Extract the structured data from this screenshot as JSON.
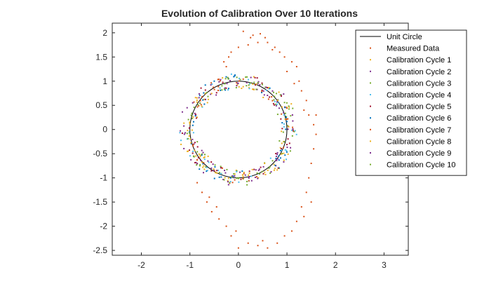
{
  "chart_data": {
    "type": "scatter",
    "title": "Evolution of Calibration Over 10 Iterations",
    "xlabel": "",
    "ylabel": "",
    "xlim": [
      -2.6,
      3.5
    ],
    "ylim": [
      -2.6,
      2.2
    ],
    "x_ticks": [
      -2,
      -1,
      0,
      1,
      2,
      3
    ],
    "y_ticks": [
      -2.5,
      -2,
      -1.5,
      -1,
      -0.5,
      0,
      0.5,
      1,
      1.5,
      2
    ],
    "x_tick_labels": [
      "-2",
      "-1",
      "0",
      "1",
      "2",
      "3"
    ],
    "y_tick_labels": [
      "-2.5",
      "-2",
      "-1.5",
      "-1",
      "-0.5",
      "0",
      "0.5",
      "1",
      "1.5",
      "2"
    ],
    "grid": false,
    "legend_position": "top-right",
    "series": [
      {
        "name": "Unit Circle",
        "kind": "line",
        "color": "#000000"
      },
      {
        "name": "Measured Data",
        "kind": "points",
        "color": "#D95319",
        "points": [
          [
            0.1,
            2.03
          ],
          [
            0.3,
            1.95
          ],
          [
            0.45,
            1.98
          ],
          [
            0.6,
            1.8
          ],
          [
            0.75,
            1.7
          ],
          [
            0.0,
            1.7
          ],
          [
            -0.15,
            1.6
          ],
          [
            0.2,
            1.75
          ],
          [
            0.4,
            1.8
          ],
          [
            0.85,
            1.6
          ],
          [
            0.95,
            1.5
          ],
          [
            1.1,
            1.4
          ],
          [
            1.2,
            1.3
          ],
          [
            1.25,
            1.0
          ],
          [
            1.3,
            0.8
          ],
          [
            1.4,
            0.6
          ],
          [
            1.45,
            0.3
          ],
          [
            1.55,
            0.1
          ],
          [
            1.6,
            -0.1
          ],
          [
            1.55,
            -0.4
          ],
          [
            1.5,
            -0.7
          ],
          [
            1.45,
            -1.0
          ],
          [
            1.4,
            -1.3
          ],
          [
            1.3,
            -1.6
          ],
          [
            1.2,
            -1.9
          ],
          [
            1.1,
            -2.1
          ],
          [
            0.95,
            -2.2
          ],
          [
            0.8,
            -2.35
          ],
          [
            0.6,
            -2.45
          ],
          [
            0.4,
            -2.4
          ],
          [
            0.2,
            -2.35
          ],
          [
            0.0,
            -2.45
          ],
          [
            -0.15,
            -2.2
          ],
          [
            -0.25,
            -2.0
          ],
          [
            -0.4,
            -1.85
          ],
          [
            -0.55,
            -1.7
          ],
          [
            -0.65,
            -1.5
          ],
          [
            -0.75,
            -1.3
          ],
          [
            -0.85,
            -1.1
          ],
          [
            -0.3,
            1.4
          ],
          [
            -0.25,
            1.3
          ],
          [
            -0.2,
            1.5
          ],
          [
            1.0,
            1.2
          ],
          [
            1.15,
            0.95
          ],
          [
            1.35,
            0.4
          ],
          [
            1.6,
            0.3
          ],
          [
            1.5,
            -1.5
          ],
          [
            1.35,
            -1.8
          ],
          [
            0.5,
            -2.3
          ],
          [
            -0.05,
            -2.1
          ],
          [
            -0.45,
            -1.6
          ],
          [
            -0.6,
            -1.4
          ],
          [
            0.7,
            1.65
          ],
          [
            0.55,
            1.9
          ],
          [
            0.25,
            1.9
          ]
        ]
      },
      {
        "name": "Calibration Cycle 1",
        "kind": "points",
        "color": "#EDB120"
      },
      {
        "name": "Calibration Cycle 2",
        "kind": "points",
        "color": "#7E2F8E"
      },
      {
        "name": "Calibration Cycle 3",
        "kind": "points",
        "color": "#77AC30"
      },
      {
        "name": "Calibration Cycle 4",
        "kind": "points",
        "color": "#4DBEEE"
      },
      {
        "name": "Calibration Cycle 5",
        "kind": "points",
        "color": "#A2142F"
      },
      {
        "name": "Calibration Cycle 6",
        "kind": "points",
        "color": "#0072BD"
      },
      {
        "name": "Calibration Cycle 7",
        "kind": "points",
        "color": "#D95319"
      },
      {
        "name": "Calibration Cycle 8",
        "kind": "points",
        "color": "#EDB120"
      },
      {
        "name": "Calibration Cycle 9",
        "kind": "points",
        "color": "#7E2F8E"
      },
      {
        "name": "Calibration Cycle 10",
        "kind": "points",
        "color": "#77AC30"
      }
    ]
  }
}
